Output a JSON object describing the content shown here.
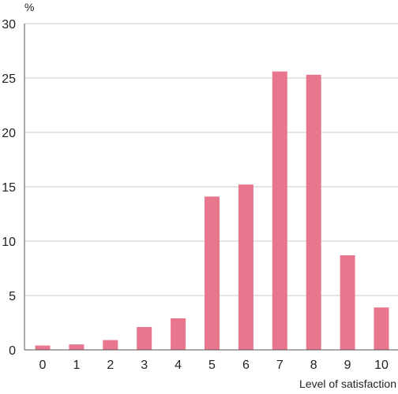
{
  "chart_data": {
    "type": "bar",
    "title": "",
    "xlabel": "Level of satisfaction",
    "ylabel": "%",
    "categories": [
      "0",
      "1",
      "2",
      "3",
      "4",
      "5",
      "6",
      "7",
      "8",
      "9",
      "10"
    ],
    "values": [
      0.4,
      0.5,
      0.9,
      2.1,
      2.9,
      14.1,
      15.2,
      25.6,
      25.3,
      8.7,
      3.9
    ],
    "ylim": [
      0,
      30
    ],
    "yticks": [
      0,
      5,
      10,
      15,
      20,
      25,
      30
    ],
    "grid": true,
    "legend": "none",
    "bar_color": "#e8768c",
    "grid_color": "#c8c8c8",
    "axis_color": "#555555"
  }
}
